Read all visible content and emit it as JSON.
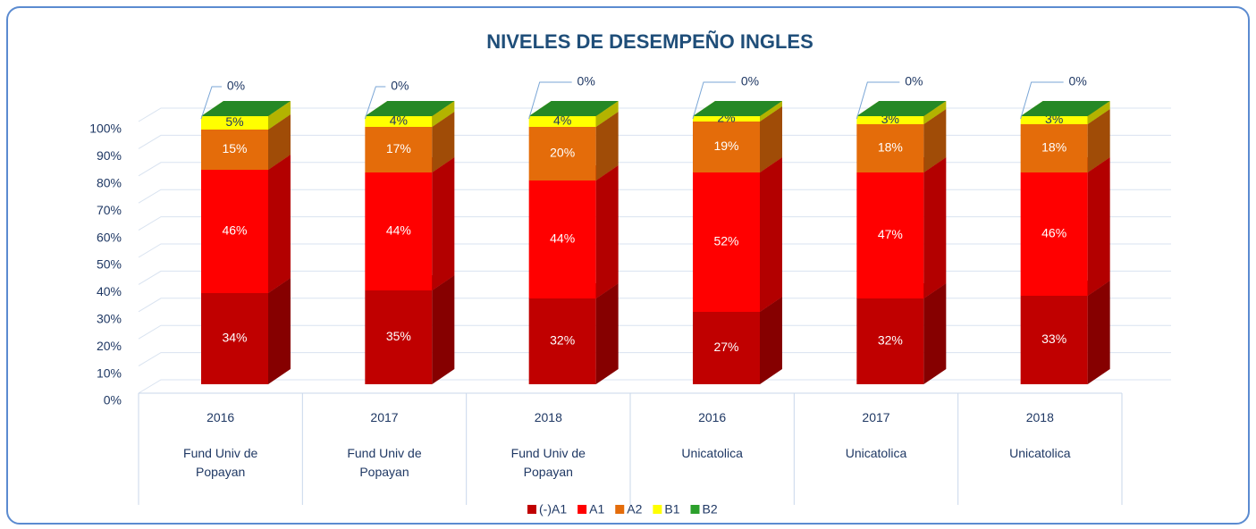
{
  "chart_data": {
    "type": "bar3d_stacked",
    "title": "NIVELES DE DESEMPEÑO INGLES",
    "categories": [
      "2016",
      "2017",
      "2018",
      "2016",
      "2017",
      "2018"
    ],
    "category_groups": [
      "Fund Univ de Popayan",
      "Fund Univ de Popayan",
      "Fund Univ de Popayan",
      "Unicatolica",
      "Unicatolica",
      "Unicatolica"
    ],
    "series": [
      {
        "name": "(-)A1",
        "color": "#c00000",
        "values": [
          34,
          35,
          32,
          27,
          32,
          33
        ],
        "value_labels": [
          "34%",
          "35%",
          "32%",
          "27%",
          "32%",
          "33%"
        ]
      },
      {
        "name": "A1",
        "color": "#ff0000",
        "values": [
          46,
          44,
          44,
          52,
          47,
          46
        ],
        "value_labels": [
          "46%",
          "44%",
          "44%",
          "52%",
          "47%",
          "46%"
        ]
      },
      {
        "name": "A2",
        "color": "#e46c0a",
        "values": [
          15,
          17,
          20,
          19,
          18,
          18
        ],
        "value_labels": [
          "15%",
          "17%",
          "20%",
          "19%",
          "18%",
          "18%"
        ]
      },
      {
        "name": "B1",
        "color": "#ffff00",
        "values": [
          5,
          4,
          4,
          2,
          3,
          3
        ],
        "value_labels": [
          "5%",
          "4%",
          "4%",
          "2%",
          "3%",
          "3%"
        ]
      },
      {
        "name": "B2",
        "color": "#2ca02c",
        "values": [
          0,
          0,
          0,
          0,
          0,
          0
        ],
        "value_labels": [
          "0%",
          "0%",
          "0%",
          "0%",
          "0%",
          "0%"
        ]
      }
    ],
    "ylim": [
      0,
      100
    ],
    "yticks": [
      {
        "value": 0,
        "label": "0%"
      },
      {
        "value": 10,
        "label": "10%"
      },
      {
        "value": 20,
        "label": "20%"
      },
      {
        "value": 30,
        "label": "30%"
      },
      {
        "value": 40,
        "label": "40%"
      },
      {
        "value": 50,
        "label": "50%"
      },
      {
        "value": 60,
        "label": "60%"
      },
      {
        "value": 70,
        "label": "70%"
      },
      {
        "value": 80,
        "label": "80%"
      },
      {
        "value": 90,
        "label": "90%"
      },
      {
        "value": 100,
        "label": "100%"
      }
    ],
    "grid": true,
    "legend": "bottom"
  }
}
